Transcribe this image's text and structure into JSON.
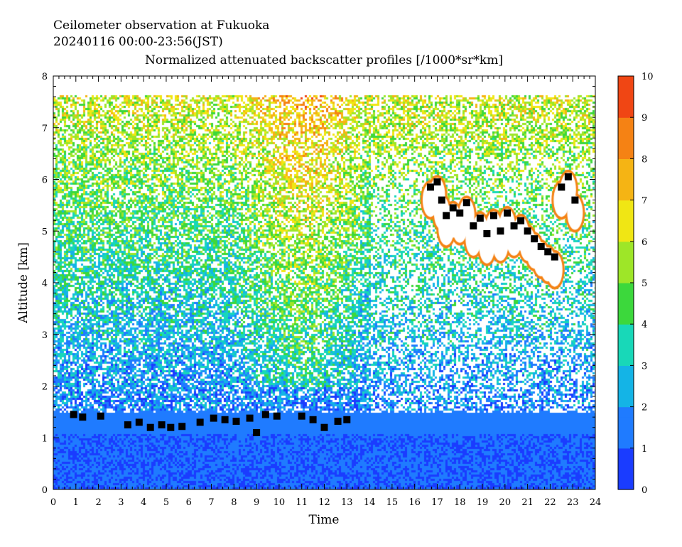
{
  "chart_data": {
    "type": "heatmap",
    "title_lines": [
      "Ceilometer observation at Fukuoka",
      "20240116  00:00-23:56(JST)",
      "Normalized attenuated backscatter profiles [/1000*sr*km]"
    ],
    "xlabel": "Time",
    "ylabel": "Altitude [km]",
    "xlim": [
      0,
      24
    ],
    "ylim": [
      0,
      8
    ],
    "x_ticks": [
      0,
      1,
      2,
      3,
      4,
      5,
      6,
      7,
      8,
      9,
      10,
      11,
      12,
      13,
      14,
      15,
      16,
      17,
      18,
      19,
      20,
      21,
      22,
      23,
      24
    ],
    "y_ticks": [
      0,
      1,
      2,
      3,
      4,
      5,
      6,
      7,
      8
    ],
    "colorbar": {
      "min": 0,
      "max": 10,
      "ticks": [
        0,
        1,
        2,
        3,
        4,
        5,
        6,
        7,
        8,
        9,
        10
      ],
      "stops": [
        "#1a3cff",
        "#1f7bff",
        "#14b4e6",
        "#18d8b8",
        "#3cd83c",
        "#9ee628",
        "#f0e614",
        "#f5b414",
        "#f58214",
        "#f04614"
      ]
    },
    "data_top_altitude": 7.65,
    "low_cloud_base": [
      {
        "t": 0.9,
        "alt": 1.45
      },
      {
        "t": 1.3,
        "alt": 1.4
      },
      {
        "t": 2.1,
        "alt": 1.42
      },
      {
        "t": 3.3,
        "alt": 1.25
      },
      {
        "t": 3.8,
        "alt": 1.3
      },
      {
        "t": 4.3,
        "alt": 1.2
      },
      {
        "t": 4.8,
        "alt": 1.25
      },
      {
        "t": 5.2,
        "alt": 1.2
      },
      {
        "t": 5.7,
        "alt": 1.22
      },
      {
        "t": 6.5,
        "alt": 1.3
      },
      {
        "t": 7.1,
        "alt": 1.38
      },
      {
        "t": 7.6,
        "alt": 1.35
      },
      {
        "t": 8.1,
        "alt": 1.32
      },
      {
        "t": 8.7,
        "alt": 1.38
      },
      {
        "t": 9.0,
        "alt": 1.1
      },
      {
        "t": 9.4,
        "alt": 1.45
      },
      {
        "t": 9.9,
        "alt": 1.42
      },
      {
        "t": 11.0,
        "alt": 1.42
      },
      {
        "t": 11.5,
        "alt": 1.35
      },
      {
        "t": 12.0,
        "alt": 1.2
      },
      {
        "t": 12.6,
        "alt": 1.32
      },
      {
        "t": 13.0,
        "alt": 1.35
      }
    ],
    "upper_cloud_base": [
      {
        "t": 16.7,
        "alt": 5.85
      },
      {
        "t": 17.0,
        "alt": 5.95
      },
      {
        "t": 17.2,
        "alt": 5.6
      },
      {
        "t": 17.4,
        "alt": 5.3
      },
      {
        "t": 17.7,
        "alt": 5.45
      },
      {
        "t": 18.0,
        "alt": 5.35
      },
      {
        "t": 18.3,
        "alt": 5.55
      },
      {
        "t": 18.6,
        "alt": 5.1
      },
      {
        "t": 18.9,
        "alt": 5.25
      },
      {
        "t": 19.2,
        "alt": 4.95
      },
      {
        "t": 19.5,
        "alt": 5.3
      },
      {
        "t": 19.8,
        "alt": 5.0
      },
      {
        "t": 20.1,
        "alt": 5.35
      },
      {
        "t": 20.4,
        "alt": 5.1
      },
      {
        "t": 20.7,
        "alt": 5.2
      },
      {
        "t": 21.0,
        "alt": 5.0
      },
      {
        "t": 21.3,
        "alt": 4.85
      },
      {
        "t": 21.6,
        "alt": 4.7
      },
      {
        "t": 21.9,
        "alt": 4.6
      },
      {
        "t": 22.2,
        "alt": 4.5
      },
      {
        "t": 22.5,
        "alt": 5.85
      },
      {
        "t": 22.8,
        "alt": 6.05
      },
      {
        "t": 23.1,
        "alt": 5.6
      }
    ]
  }
}
